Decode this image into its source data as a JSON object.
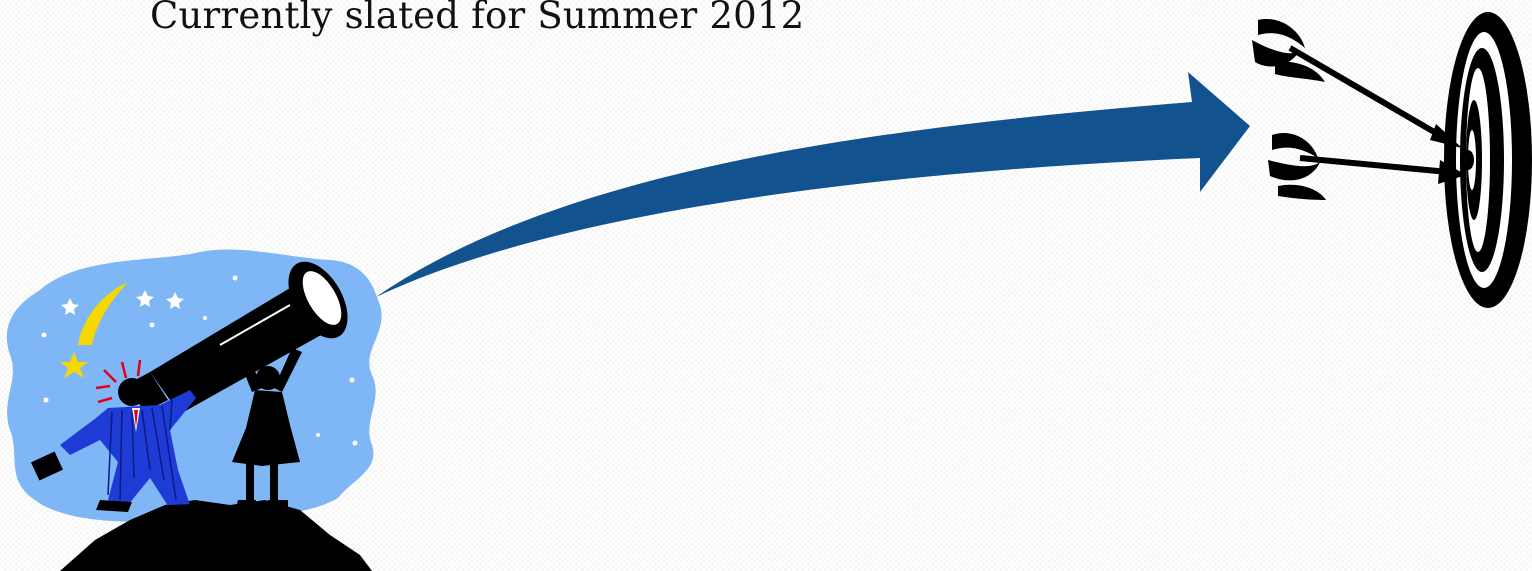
{
  "slide": {
    "caption": "Currently slated for Summer 2012",
    "colors": {
      "arrow": "#12528f",
      "sky": "#7fb6f6",
      "suit": "#1f3bd6",
      "star": "#f4d800",
      "silhouette": "#000000"
    },
    "clipart": {
      "left": "telescope-explorers",
      "middle": "trajectory-arrow",
      "right": "bullseye-target-with-arrows"
    }
  }
}
